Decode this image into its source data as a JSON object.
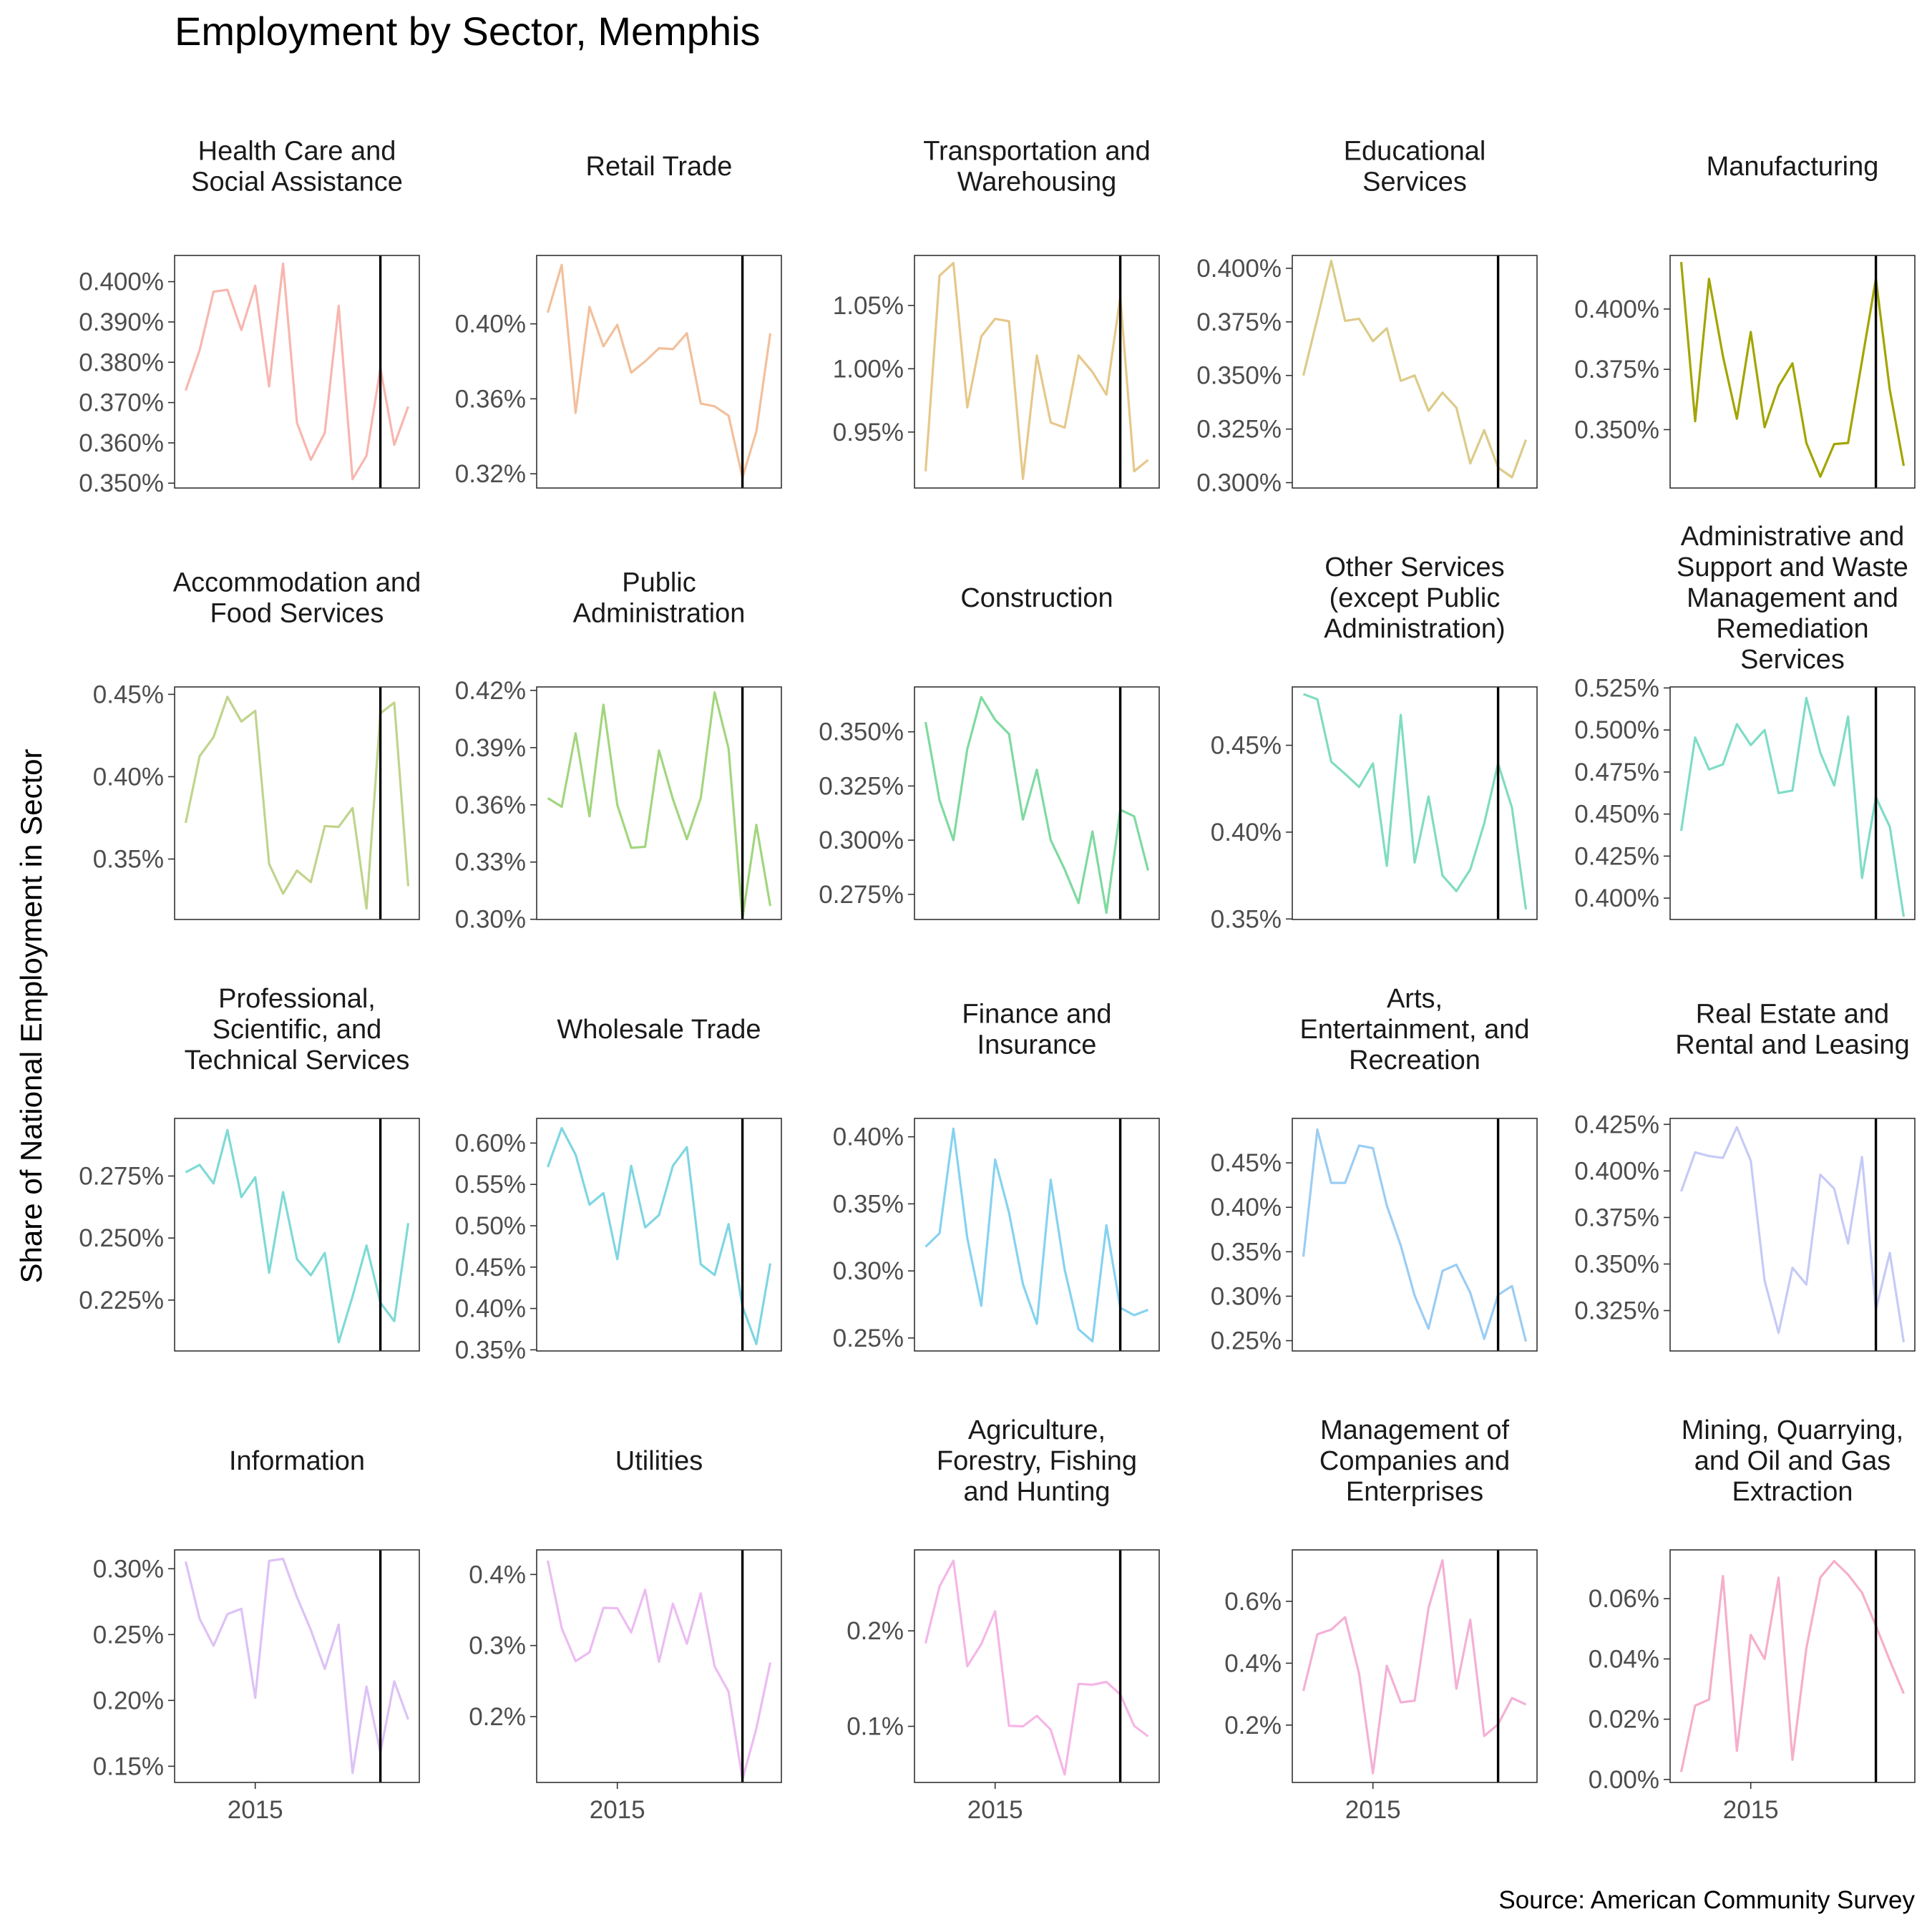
{
  "chart_data": {
    "type": "line",
    "title": "Employment by Sector, Memphis",
    "ylabel": "Share of National Employment in Sector",
    "xlabel": "",
    "caption": "Source: American Community Survey",
    "x": [
      2010,
      2011,
      2012,
      2013,
      2014,
      2015,
      2016,
      2017,
      2018,
      2019,
      2020,
      2021,
      2022,
      2023,
      2024,
      2025,
      2026
    ],
    "xlim": [
      2009.2,
      2026.8
    ],
    "x_ticks": [
      {
        "value": 2015,
        "label": "2015"
      }
    ],
    "vline_x": 2024,
    "grid": false,
    "legend": "none",
    "panels": [
      {
        "name": "Health Care and Social Assistance",
        "label_lines": [
          "Health Care and",
          "Social Assistance"
        ],
        "color": "#F8B6AF",
        "ylim": [
          0.3488,
          0.4065
        ],
        "values": [
          0.373,
          0.383,
          0.3975,
          0.398,
          0.388,
          0.399,
          0.374,
          0.4045,
          0.365,
          0.3558,
          0.3625,
          0.394,
          0.351,
          0.3568,
          0.3785,
          0.3595,
          0.369
        ],
        "ticks": [
          {
            "value": 0.35,
            "label": "0.350%"
          },
          {
            "value": 0.36,
            "label": "0.360%"
          },
          {
            "value": 0.37,
            "label": "0.370%"
          },
          {
            "value": 0.38,
            "label": "0.380%"
          },
          {
            "value": 0.39,
            "label": "0.390%"
          },
          {
            "value": 0.4,
            "label": "0.400%"
          }
        ]
      },
      {
        "name": "Retail Trade",
        "label_lines": [
          "Retail Trade"
        ],
        "color": "#F2C09C",
        "ylim": [
          0.3124,
          0.4365
        ],
        "values": [
          0.406,
          0.4315,
          0.3525,
          0.409,
          0.388,
          0.3995,
          0.374,
          0.38,
          0.387,
          0.3865,
          0.395,
          0.3575,
          0.356,
          0.351,
          0.318,
          0.3425,
          0.395
        ],
        "ticks": [
          {
            "value": 0.32,
            "label": "0.32%"
          },
          {
            "value": 0.36,
            "label": "0.36%"
          },
          {
            "value": 0.4,
            "label": "0.40%"
          }
        ]
      },
      {
        "name": "Transportation and Warehousing",
        "label_lines": [
          "Transportation and",
          "Warehousing"
        ],
        "color": "#E6C88A",
        "ylim": [
          0.9058,
          1.0895
        ],
        "values": [
          0.919,
          1.0735,
          1.0835,
          0.9695,
          1.0255,
          1.0395,
          1.0375,
          0.913,
          1.0105,
          0.9575,
          0.9535,
          1.0105,
          0.9975,
          0.9795,
          1.0565,
          0.919,
          0.928
        ],
        "ticks": [
          {
            "value": 0.95,
            "label": "0.95%"
          },
          {
            "value": 1.0,
            "label": "1.00%"
          },
          {
            "value": 1.05,
            "label": "1.05%"
          }
        ]
      },
      {
        "name": "Educational Services",
        "label_lines": [
          "Educational",
          "Services"
        ],
        "color": "#DCCB89",
        "ylim": [
          0.2975,
          0.406
        ],
        "values": [
          0.35,
          0.3765,
          0.4035,
          0.3755,
          0.3765,
          0.366,
          0.372,
          0.3475,
          0.35,
          0.3335,
          0.342,
          0.335,
          0.309,
          0.3245,
          0.307,
          0.3025,
          0.32
        ],
        "ticks": [
          {
            "value": 0.3,
            "label": "0.300%"
          },
          {
            "value": 0.325,
            "label": "0.325%"
          },
          {
            "value": 0.35,
            "label": "0.350%"
          },
          {
            "value": 0.375,
            "label": "0.375%"
          },
          {
            "value": 0.4,
            "label": "0.400%"
          }
        ]
      },
      {
        "name": "Manufacturing",
        "label_lines": [
          "Manufacturing"
        ],
        "color": "#A3A500",
        "ylim": [
          0.3258,
          0.4222
        ],
        "values": [
          0.4195,
          0.3535,
          0.4125,
          0.3805,
          0.3545,
          0.3905,
          0.351,
          0.368,
          0.3775,
          0.3445,
          0.3305,
          0.344,
          0.3445,
          0.3785,
          0.4125,
          0.3665,
          0.335
        ],
        "ticks": [
          {
            "value": 0.35,
            "label": "0.350%"
          },
          {
            "value": 0.375,
            "label": "0.375%"
          },
          {
            "value": 0.4,
            "label": "0.400%"
          }
        ]
      },
      {
        "name": "Accommodation and Food Services",
        "label_lines": [
          "Accommodation and",
          "Food Services"
        ],
        "color": "#C0D48C",
        "ylim": [
          0.3133,
          0.4545
        ],
        "values": [
          0.372,
          0.4125,
          0.424,
          0.4485,
          0.4335,
          0.44,
          0.347,
          0.329,
          0.343,
          0.336,
          0.37,
          0.3695,
          0.381,
          0.32,
          0.4385,
          0.445,
          0.3335
        ],
        "ticks": [
          {
            "value": 0.35,
            "label": "0.35%"
          },
          {
            "value": 0.4,
            "label": "0.40%"
          },
          {
            "value": 0.45,
            "label": "0.45%"
          }
        ]
      },
      {
        "name": "Public Administration",
        "label_lines": [
          "Public",
          "Administration"
        ],
        "color": "#A2D67E",
        "ylim": [
          0.2999,
          0.4218
        ],
        "values": [
          0.3635,
          0.359,
          0.3975,
          0.354,
          0.4125,
          0.36,
          0.3375,
          0.338,
          0.3885,
          0.363,
          0.342,
          0.3635,
          0.419,
          0.3895,
          0.3005,
          0.3495,
          0.307
        ],
        "ticks": [
          {
            "value": 0.3,
            "label": "0.30%"
          },
          {
            "value": 0.33,
            "label": "0.33%"
          },
          {
            "value": 0.36,
            "label": "0.36%"
          },
          {
            "value": 0.39,
            "label": "0.39%"
          },
          {
            "value": 0.42,
            "label": "0.42%"
          }
        ]
      },
      {
        "name": "Construction",
        "label_lines": [
          "Construction"
        ],
        "color": "#7EDAA0",
        "ylim": [
          0.2634,
          0.3707
        ],
        "values": [
          0.3545,
          0.3185,
          0.3,
          0.342,
          0.366,
          0.3555,
          0.349,
          0.3095,
          0.3325,
          0.3,
          0.2865,
          0.271,
          0.304,
          0.2665,
          0.314,
          0.311,
          0.286
        ],
        "ticks": [
          {
            "value": 0.275,
            "label": "0.275%"
          },
          {
            "value": 0.3,
            "label": "0.300%"
          },
          {
            "value": 0.325,
            "label": "0.325%"
          },
          {
            "value": 0.35,
            "label": "0.350%"
          }
        ]
      },
      {
        "name": "Other Services (except Public Administration)",
        "label_lines": [
          "Other Services",
          "(except Public",
          "Administration)"
        ],
        "color": "#80DCC0",
        "ylim": [
          0.3497,
          0.4836
        ],
        "values": [
          0.4795,
          0.4765,
          0.4405,
          0.4335,
          0.426,
          0.4395,
          0.3805,
          0.4675,
          0.3825,
          0.4205,
          0.375,
          0.366,
          0.3785,
          0.405,
          0.4395,
          0.414,
          0.3555
        ],
        "ticks": [
          {
            "value": 0.35,
            "label": "0.35%"
          },
          {
            "value": 0.4,
            "label": "0.40%"
          },
          {
            "value": 0.45,
            "label": "0.45%"
          }
        ]
      },
      {
        "name": "Administrative and Support and Waste Management and Remediation Services",
        "label_lines": [
          "Administrative and",
          "Support and Waste",
          "Management and",
          "Remediation",
          "Services"
        ],
        "color": "#7FDCC6",
        "ylim": [
          0.3873,
          0.5256
        ],
        "values": [
          0.44,
          0.4955,
          0.4765,
          0.4795,
          0.5035,
          0.491,
          0.5,
          0.4625,
          0.464,
          0.519,
          0.4865,
          0.467,
          0.508,
          0.412,
          0.46,
          0.4425,
          0.389
        ],
        "ticks": [
          {
            "value": 0.4,
            "label": "0.400%"
          },
          {
            "value": 0.425,
            "label": "0.425%"
          },
          {
            "value": 0.45,
            "label": "0.450%"
          },
          {
            "value": 0.475,
            "label": "0.475%"
          },
          {
            "value": 0.5,
            "label": "0.500%"
          },
          {
            "value": 0.525,
            "label": "0.525%"
          }
        ]
      },
      {
        "name": "Professional, Scientific, and Technical Services",
        "label_lines": [
          "Professional,",
          "Scientific, and",
          "Technical Services"
        ],
        "color": "#7FDAD6",
        "ylim": [
          0.2045,
          0.2982
        ],
        "values": [
          0.2765,
          0.2795,
          0.272,
          0.2935,
          0.2665,
          0.2745,
          0.236,
          0.2685,
          0.2415,
          0.235,
          0.244,
          0.208,
          0.2265,
          0.247,
          0.224,
          0.2165,
          0.256
        ],
        "ticks": [
          {
            "value": 0.225,
            "label": "0.225%"
          },
          {
            "value": 0.25,
            "label": "0.250%"
          },
          {
            "value": 0.275,
            "label": "0.275%"
          }
        ]
      },
      {
        "name": "Wholesale Trade",
        "label_lines": [
          "Wholesale Trade"
        ],
        "color": "#7FD6E2",
        "ylim": [
          0.3486,
          0.6298
        ],
        "values": [
          0.571,
          0.618,
          0.586,
          0.5255,
          0.5395,
          0.4595,
          0.5725,
          0.498,
          0.513,
          0.5725,
          0.595,
          0.4535,
          0.4405,
          0.502,
          0.4025,
          0.357,
          0.4545
        ],
        "ticks": [
          {
            "value": 0.35,
            "label": "0.35%"
          },
          {
            "value": 0.4,
            "label": "0.40%"
          },
          {
            "value": 0.45,
            "label": "0.45%"
          },
          {
            "value": 0.5,
            "label": "0.50%"
          },
          {
            "value": 0.55,
            "label": "0.55%"
          },
          {
            "value": 0.6,
            "label": "0.60%"
          }
        ]
      },
      {
        "name": "Finance and Insurance",
        "label_lines": [
          "Finance and",
          "Insurance"
        ],
        "color": "#86D2F0",
        "ylim": [
          0.2403,
          0.4137
        ],
        "values": [
          0.318,
          0.328,
          0.406,
          0.3245,
          0.274,
          0.383,
          0.3435,
          0.29,
          0.2605,
          0.368,
          0.301,
          0.2565,
          0.2475,
          0.334,
          0.2725,
          0.267,
          0.271
        ],
        "ticks": [
          {
            "value": 0.25,
            "label": "0.25%"
          },
          {
            "value": 0.3,
            "label": "0.30%"
          },
          {
            "value": 0.35,
            "label": "0.35%"
          },
          {
            "value": 0.4,
            "label": "0.40%"
          }
        ]
      },
      {
        "name": "Arts, Entertainment, and Recreation",
        "label_lines": [
          "Arts,",
          "Entertainment, and",
          "Recreation"
        ],
        "color": "#9BCDF4",
        "ylim": [
          0.2384,
          0.5
        ],
        "values": [
          0.3445,
          0.4875,
          0.4275,
          0.4275,
          0.4695,
          0.4665,
          0.402,
          0.357,
          0.3005,
          0.2635,
          0.3285,
          0.3355,
          0.304,
          0.252,
          0.3015,
          0.3115,
          0.249
        ],
        "ticks": [
          {
            "value": 0.25,
            "label": "0.25%"
          },
          {
            "value": 0.3,
            "label": "0.30%"
          },
          {
            "value": 0.35,
            "label": "0.35%"
          },
          {
            "value": 0.4,
            "label": "0.40%"
          },
          {
            "value": 0.45,
            "label": "0.45%"
          }
        ]
      },
      {
        "name": "Real Estate and Rental and Leasing",
        "label_lines": [
          "Real Estate and",
          "Rental and Leasing"
        ],
        "color": "#C6CAF6",
        "ylim": [
          0.3033,
          0.4282
        ],
        "values": [
          0.389,
          0.41,
          0.408,
          0.407,
          0.4235,
          0.4055,
          0.341,
          0.313,
          0.348,
          0.339,
          0.398,
          0.3905,
          0.361,
          0.4075,
          0.3255,
          0.356,
          0.308
        ],
        "ticks": [
          {
            "value": 0.325,
            "label": "0.325%"
          },
          {
            "value": 0.35,
            "label": "0.350%"
          },
          {
            "value": 0.375,
            "label": "0.375%"
          },
          {
            "value": 0.4,
            "label": "0.400%"
          },
          {
            "value": 0.425,
            "label": "0.425%"
          }
        ]
      },
      {
        "name": "Information",
        "label_lines": [
          "Information"
        ],
        "color": "#DDC2F6",
        "ylim": [
          0.1377,
          0.3143
        ],
        "values": [
          0.3055,
          0.262,
          0.2415,
          0.2655,
          0.2695,
          0.202,
          0.306,
          0.3075,
          0.2785,
          0.2535,
          0.224,
          0.2575,
          0.145,
          0.2105,
          0.1605,
          0.2145,
          0.1855
        ],
        "ticks": [
          {
            "value": 0.15,
            "label": "0.15%"
          },
          {
            "value": 0.2,
            "label": "0.20%"
          },
          {
            "value": 0.25,
            "label": "0.25%"
          },
          {
            "value": 0.3,
            "label": "0.30%"
          }
        ]
      },
      {
        "name": "Utilities",
        "label_lines": [
          "Utilities"
        ],
        "color": "#ECBCF2",
        "ylim": [
          0.1073,
          0.4346
        ],
        "values": [
          0.4195,
          0.3245,
          0.278,
          0.2905,
          0.353,
          0.3525,
          0.3185,
          0.3785,
          0.277,
          0.359,
          0.3025,
          0.3735,
          0.2705,
          0.235,
          0.1115,
          0.183,
          0.276
        ],
        "ticks": [
          {
            "value": 0.2,
            "label": "0.2%"
          },
          {
            "value": 0.3,
            "label": "0.3%"
          },
          {
            "value": 0.4,
            "label": "0.4%"
          }
        ]
      },
      {
        "name": "Agriculture, Forestry, Fishing and Hunting",
        "label_lines": [
          "Agriculture,",
          "Forestry, Fishing",
          "and Hunting"
        ],
        "color": "#F5B6E6",
        "ylim": [
          0.0412,
          0.2848
        ],
        "values": [
          0.187,
          0.2465,
          0.2735,
          0.163,
          0.186,
          0.2205,
          0.1005,
          0.1,
          0.111,
          0.0965,
          0.0495,
          0.1445,
          0.1435,
          0.1465,
          0.1335,
          0.1005,
          0.0895
        ],
        "ticks": [
          {
            "value": 0.1,
            "label": "0.1%"
          },
          {
            "value": 0.2,
            "label": "0.2%"
          }
        ]
      },
      {
        "name": "Management of Companies and Enterprises",
        "label_lines": [
          "Management of",
          "Companies and",
          "Enterprises"
        ],
        "color": "#F4B0D6",
        "ylim": [
          0.0147,
          0.7661
        ],
        "values": [
          0.3105,
          0.4935,
          0.5085,
          0.5485,
          0.3665,
          0.0445,
          0.3915,
          0.2735,
          0.279,
          0.5785,
          0.7325,
          0.3175,
          0.5405,
          0.165,
          0.2025,
          0.2875,
          0.2665
        ],
        "ticks": [
          {
            "value": 0.2,
            "label": "0.2%"
          },
          {
            "value": 0.4,
            "label": "0.4%"
          },
          {
            "value": 0.6,
            "label": "0.6%"
          }
        ]
      },
      {
        "name": "Mining, Quarrying, and Oil and Gas Extraction",
        "label_lines": [
          "Mining, Quarrying,",
          "and Oil and Gas",
          "Extraction"
        ],
        "color": "#F6AECB",
        "ylim": [
          -0.001,
          0.0762
        ],
        "values": [
          0.0025,
          0.0245,
          0.0265,
          0.0675,
          0.0095,
          0.048,
          0.04,
          0.067,
          0.0065,
          0.0435,
          0.067,
          0.0725,
          0.068,
          0.062,
          0.051,
          0.0395,
          0.0285
        ],
        "ticks": [
          {
            "value": 0.0,
            "label": "0.00%"
          },
          {
            "value": 0.02,
            "label": "0.02%"
          },
          {
            "value": 0.04,
            "label": "0.04%"
          },
          {
            "value": 0.06,
            "label": "0.06%"
          }
        ]
      }
    ]
  }
}
